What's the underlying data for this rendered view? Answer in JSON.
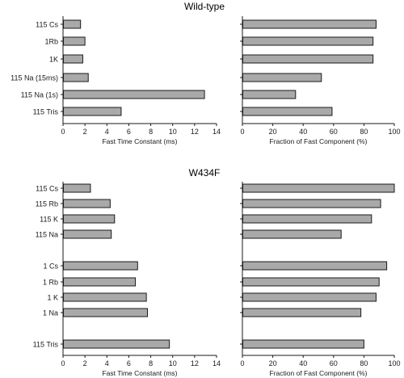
{
  "chart_data": [
    {
      "type": "bar",
      "title": "Wild-type",
      "xlabel": "Fast Time Constant (ms)",
      "xlim": [
        0,
        14
      ],
      "xticks": [
        "0",
        "2",
        "4",
        "6",
        "8",
        "10",
        "12",
        "14"
      ],
      "categories": [
        "115 Cs",
        "1Rb",
        "1K",
        "115 Na (15ms)",
        "115 Na (1s)",
        "115 Tris"
      ],
      "values": [
        1.6,
        2.0,
        1.8,
        2.3,
        12.9,
        5.3
      ]
    },
    {
      "type": "bar",
      "title": "",
      "xlabel": "Fraction of Fast Component (%)",
      "xlim": [
        0,
        100
      ],
      "xticks": [
        "0",
        "20",
        "40",
        "60",
        "80",
        "100"
      ],
      "categories": [
        "115 Cs",
        "1Rb",
        "1K",
        "115 Na (15ms)",
        "115 Na (1s)",
        "115 Tris"
      ],
      "values": [
        88,
        86,
        86,
        52,
        35,
        59
      ]
    },
    {
      "type": "bar",
      "title": "W434F",
      "xlabel": "Fast Time Constant (ms)",
      "xlim": [
        0,
        14
      ],
      "xticks": [
        "0",
        "2",
        "4",
        "6",
        "8",
        "10",
        "12",
        "14"
      ],
      "categories": [
        "115 Cs",
        "115 Rb",
        "115 K",
        "115 Na",
        "1 Cs",
        "1 Rb",
        "1 K",
        "1 Na",
        "115 Tris"
      ],
      "values": [
        2.5,
        4.3,
        4.7,
        4.4,
        6.8,
        6.6,
        7.6,
        7.7,
        9.7
      ]
    },
    {
      "type": "bar",
      "title": "",
      "xlabel": "Fraction of Fast Component (%)",
      "xlim": [
        0,
        100
      ],
      "xticks": [
        "0",
        "20",
        "40",
        "60",
        "80",
        "100"
      ],
      "categories": [
        "115 Cs",
        "115 Rb",
        "115 K",
        "115 Na",
        "1 Cs",
        "1 Rb",
        "1 K",
        "1 Na",
        "115 Tris"
      ],
      "values": [
        100,
        91,
        85,
        65,
        95,
        90,
        88,
        78,
        80
      ]
    }
  ],
  "colors": {
    "bar_fill": "#a9a9a9",
    "bar_stroke": "#1a1a1a",
    "axis": "#1a1a1a"
  }
}
